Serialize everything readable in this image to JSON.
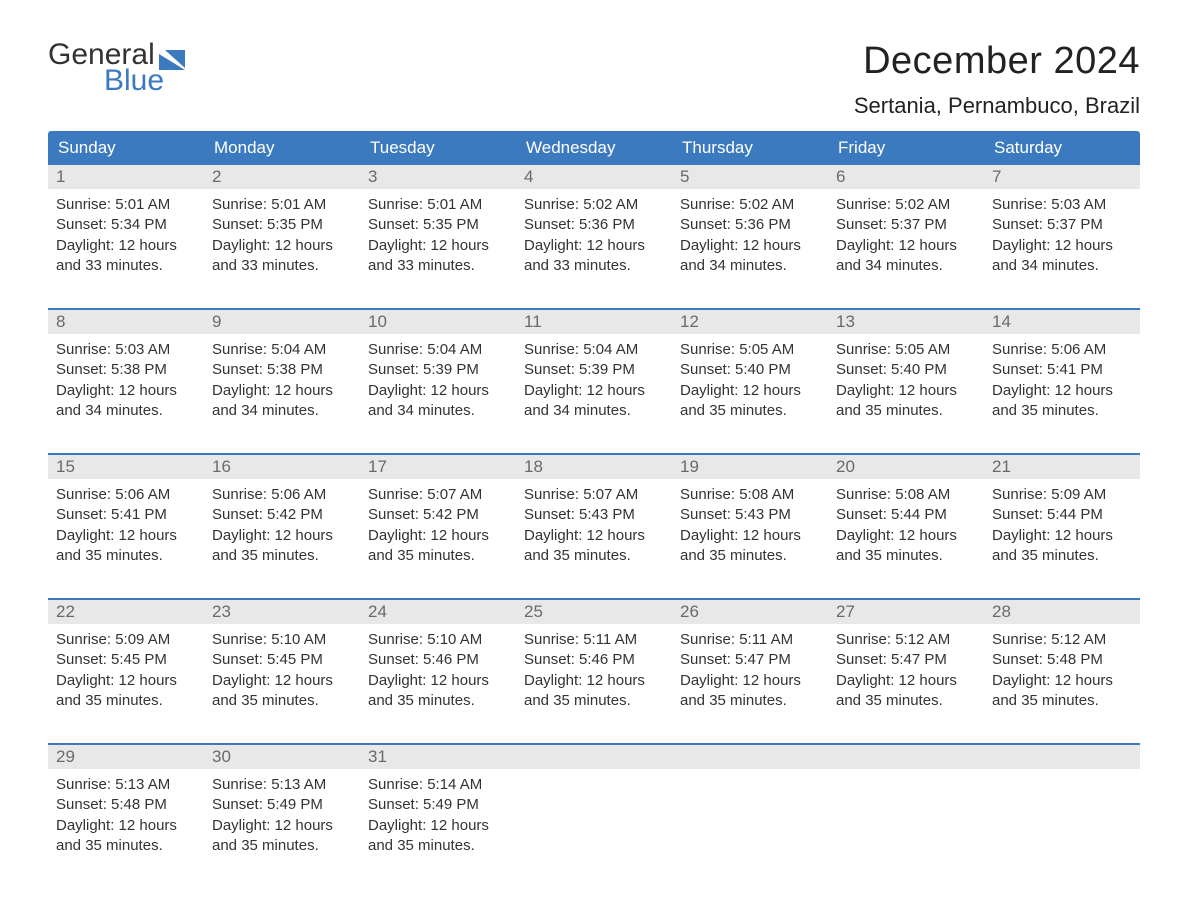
{
  "logo": {
    "text_top": "General",
    "text_bottom": "Blue",
    "color_top": "#333333",
    "color_bottom": "#3b7abf",
    "flag_color": "#3b7abf"
  },
  "title": "December 2024",
  "location": "Sertania, Pernambuco, Brazil",
  "colors": {
    "header_bg": "#3b7abf",
    "header_text": "#ffffff",
    "daynum_bg": "#e8e8e8",
    "daynum_text": "#6a6a6a",
    "body_text": "#333333",
    "week_border": "#3b7abf",
    "page_bg": "#ffffff"
  },
  "fonts": {
    "title_size_pt": 29,
    "location_size_pt": 17,
    "header_size_pt": 13,
    "body_size_pt": 11
  },
  "day_names": [
    "Sunday",
    "Monday",
    "Tuesday",
    "Wednesday",
    "Thursday",
    "Friday",
    "Saturday"
  ],
  "weeks": [
    {
      "nums": [
        "1",
        "2",
        "3",
        "4",
        "5",
        "6",
        "7"
      ],
      "cells": [
        {
          "sunrise": "Sunrise: 5:01 AM",
          "sunset": "Sunset: 5:34 PM",
          "d1": "Daylight: 12 hours",
          "d2": "and 33 minutes."
        },
        {
          "sunrise": "Sunrise: 5:01 AM",
          "sunset": "Sunset: 5:35 PM",
          "d1": "Daylight: 12 hours",
          "d2": "and 33 minutes."
        },
        {
          "sunrise": "Sunrise: 5:01 AM",
          "sunset": "Sunset: 5:35 PM",
          "d1": "Daylight: 12 hours",
          "d2": "and 33 minutes."
        },
        {
          "sunrise": "Sunrise: 5:02 AM",
          "sunset": "Sunset: 5:36 PM",
          "d1": "Daylight: 12 hours",
          "d2": "and 33 minutes."
        },
        {
          "sunrise": "Sunrise: 5:02 AM",
          "sunset": "Sunset: 5:36 PM",
          "d1": "Daylight: 12 hours",
          "d2": "and 34 minutes."
        },
        {
          "sunrise": "Sunrise: 5:02 AM",
          "sunset": "Sunset: 5:37 PM",
          "d1": "Daylight: 12 hours",
          "d2": "and 34 minutes."
        },
        {
          "sunrise": "Sunrise: 5:03 AM",
          "sunset": "Sunset: 5:37 PM",
          "d1": "Daylight: 12 hours",
          "d2": "and 34 minutes."
        }
      ]
    },
    {
      "nums": [
        "8",
        "9",
        "10",
        "11",
        "12",
        "13",
        "14"
      ],
      "cells": [
        {
          "sunrise": "Sunrise: 5:03 AM",
          "sunset": "Sunset: 5:38 PM",
          "d1": "Daylight: 12 hours",
          "d2": "and 34 minutes."
        },
        {
          "sunrise": "Sunrise: 5:04 AM",
          "sunset": "Sunset: 5:38 PM",
          "d1": "Daylight: 12 hours",
          "d2": "and 34 minutes."
        },
        {
          "sunrise": "Sunrise: 5:04 AM",
          "sunset": "Sunset: 5:39 PM",
          "d1": "Daylight: 12 hours",
          "d2": "and 34 minutes."
        },
        {
          "sunrise": "Sunrise: 5:04 AM",
          "sunset": "Sunset: 5:39 PM",
          "d1": "Daylight: 12 hours",
          "d2": "and 34 minutes."
        },
        {
          "sunrise": "Sunrise: 5:05 AM",
          "sunset": "Sunset: 5:40 PM",
          "d1": "Daylight: 12 hours",
          "d2": "and 35 minutes."
        },
        {
          "sunrise": "Sunrise: 5:05 AM",
          "sunset": "Sunset: 5:40 PM",
          "d1": "Daylight: 12 hours",
          "d2": "and 35 minutes."
        },
        {
          "sunrise": "Sunrise: 5:06 AM",
          "sunset": "Sunset: 5:41 PM",
          "d1": "Daylight: 12 hours",
          "d2": "and 35 minutes."
        }
      ]
    },
    {
      "nums": [
        "15",
        "16",
        "17",
        "18",
        "19",
        "20",
        "21"
      ],
      "cells": [
        {
          "sunrise": "Sunrise: 5:06 AM",
          "sunset": "Sunset: 5:41 PM",
          "d1": "Daylight: 12 hours",
          "d2": "and 35 minutes."
        },
        {
          "sunrise": "Sunrise: 5:06 AM",
          "sunset": "Sunset: 5:42 PM",
          "d1": "Daylight: 12 hours",
          "d2": "and 35 minutes."
        },
        {
          "sunrise": "Sunrise: 5:07 AM",
          "sunset": "Sunset: 5:42 PM",
          "d1": "Daylight: 12 hours",
          "d2": "and 35 minutes."
        },
        {
          "sunrise": "Sunrise: 5:07 AM",
          "sunset": "Sunset: 5:43 PM",
          "d1": "Daylight: 12 hours",
          "d2": "and 35 minutes."
        },
        {
          "sunrise": "Sunrise: 5:08 AM",
          "sunset": "Sunset: 5:43 PM",
          "d1": "Daylight: 12 hours",
          "d2": "and 35 minutes."
        },
        {
          "sunrise": "Sunrise: 5:08 AM",
          "sunset": "Sunset: 5:44 PM",
          "d1": "Daylight: 12 hours",
          "d2": "and 35 minutes."
        },
        {
          "sunrise": "Sunrise: 5:09 AM",
          "sunset": "Sunset: 5:44 PM",
          "d1": "Daylight: 12 hours",
          "d2": "and 35 minutes."
        }
      ]
    },
    {
      "nums": [
        "22",
        "23",
        "24",
        "25",
        "26",
        "27",
        "28"
      ],
      "cells": [
        {
          "sunrise": "Sunrise: 5:09 AM",
          "sunset": "Sunset: 5:45 PM",
          "d1": "Daylight: 12 hours",
          "d2": "and 35 minutes."
        },
        {
          "sunrise": "Sunrise: 5:10 AM",
          "sunset": "Sunset: 5:45 PM",
          "d1": "Daylight: 12 hours",
          "d2": "and 35 minutes."
        },
        {
          "sunrise": "Sunrise: 5:10 AM",
          "sunset": "Sunset: 5:46 PM",
          "d1": "Daylight: 12 hours",
          "d2": "and 35 minutes."
        },
        {
          "sunrise": "Sunrise: 5:11 AM",
          "sunset": "Sunset: 5:46 PM",
          "d1": "Daylight: 12 hours",
          "d2": "and 35 minutes."
        },
        {
          "sunrise": "Sunrise: 5:11 AM",
          "sunset": "Sunset: 5:47 PM",
          "d1": "Daylight: 12 hours",
          "d2": "and 35 minutes."
        },
        {
          "sunrise": "Sunrise: 5:12 AM",
          "sunset": "Sunset: 5:47 PM",
          "d1": "Daylight: 12 hours",
          "d2": "and 35 minutes."
        },
        {
          "sunrise": "Sunrise: 5:12 AM",
          "sunset": "Sunset: 5:48 PM",
          "d1": "Daylight: 12 hours",
          "d2": "and 35 minutes."
        }
      ]
    },
    {
      "nums": [
        "29",
        "30",
        "31",
        "",
        "",
        "",
        ""
      ],
      "cells": [
        {
          "sunrise": "Sunrise: 5:13 AM",
          "sunset": "Sunset: 5:48 PM",
          "d1": "Daylight: 12 hours",
          "d2": "and 35 minutes."
        },
        {
          "sunrise": "Sunrise: 5:13 AM",
          "sunset": "Sunset: 5:49 PM",
          "d1": "Daylight: 12 hours",
          "d2": "and 35 minutes."
        },
        {
          "sunrise": "Sunrise: 5:14 AM",
          "sunset": "Sunset: 5:49 PM",
          "d1": "Daylight: 12 hours",
          "d2": "and 35 minutes."
        },
        {
          "sunrise": "",
          "sunset": "",
          "d1": "",
          "d2": ""
        },
        {
          "sunrise": "",
          "sunset": "",
          "d1": "",
          "d2": ""
        },
        {
          "sunrise": "",
          "sunset": "",
          "d1": "",
          "d2": ""
        },
        {
          "sunrise": "",
          "sunset": "",
          "d1": "",
          "d2": ""
        }
      ]
    }
  ]
}
